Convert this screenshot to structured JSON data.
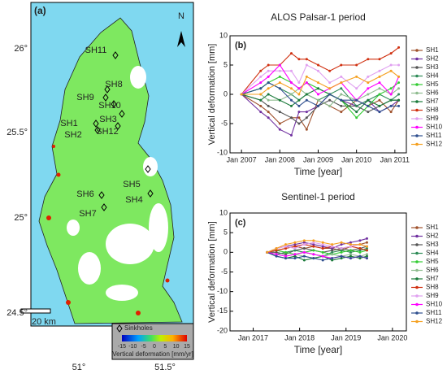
{
  "map": {
    "panel_label": "(a)",
    "north": "N",
    "scale_bar": "20 km",
    "legend_title": "Sinkholes",
    "colorbar_ticks": [
      -15,
      -10,
      -5,
      0,
      5,
      10,
      15
    ],
    "colorbar_label": "Vertical deformation [mm/yr]",
    "lat_labels": [
      "26°",
      "25.5°",
      "25°",
      "24.5°"
    ],
    "lon_labels": [
      "51°",
      "51.5°"
    ],
    "sinkholes": [
      "SH1",
      "SH2",
      "SH3",
      "SH4",
      "SH5",
      "SH6",
      "SH7",
      "SH8",
      "SH9",
      "SH10",
      "SH11",
      "SH12"
    ]
  },
  "chart_data": [
    {
      "type": "line",
      "title": "ALOS Palsar-1 period",
      "panel_label": "(b)",
      "x_label": "Time [year]",
      "y_label": "Vertical deformation [mm]",
      "x": [
        2007.0,
        2007.5,
        2007.7,
        2008.0,
        2008.3,
        2008.5,
        2008.7,
        2009.0,
        2009.3,
        2009.6,
        2010.0,
        2010.3,
        2010.6,
        2010.9,
        2011.1
      ],
      "xlim": [
        2006.7,
        2011.3
      ],
      "xticks": [
        {
          "value": 2007,
          "label": "Jan 2007"
        },
        {
          "value": 2008,
          "label": "Jan 2008"
        },
        {
          "value": 2009,
          "label": "Jan 2009"
        },
        {
          "value": 2010,
          "label": "Jan 2010"
        },
        {
          "value": 2011,
          "label": "Jan 2011"
        }
      ],
      "ylim": [
        -10,
        10
      ],
      "yticks": [
        -10,
        -5,
        0,
        5,
        10
      ],
      "grid": false,
      "legend": "right",
      "series": [
        {
          "name": "SH1",
          "color": "#a0522d",
          "values": [
            0,
            -2,
            -3,
            -5,
            -4,
            -4,
            -6,
            -1,
            -2,
            -3,
            -1,
            -2,
            -1,
            -3,
            -1
          ]
        },
        {
          "name": "SH2",
          "color": "#7030a0",
          "values": [
            0,
            -3,
            -4,
            -6,
            -7,
            -3,
            -3,
            -2,
            0,
            -1,
            -2,
            -1,
            -3,
            -2,
            -1
          ]
        },
        {
          "name": "SH3",
          "color": "#555555",
          "values": [
            0,
            -1,
            -2,
            -3,
            -4,
            -5,
            -4,
            -2,
            -1,
            -2,
            -2,
            -3,
            -2,
            -1,
            -1
          ]
        },
        {
          "name": "SH4",
          "color": "#2e8b57",
          "values": [
            0,
            1,
            2,
            1,
            0,
            -1,
            0,
            -1,
            0,
            1,
            -2,
            -1,
            0,
            -1,
            0
          ]
        },
        {
          "name": "SH5",
          "color": "#33cc33",
          "values": [
            0,
            1,
            2,
            3,
            2,
            1,
            2,
            1,
            0,
            -1,
            -4,
            -2,
            0,
            1,
            2
          ]
        },
        {
          "name": "SH6",
          "color": "#8fbc8f",
          "values": [
            0,
            0,
            -1,
            -1,
            0,
            1,
            0,
            -1,
            -2,
            0,
            -1,
            0,
            1,
            0,
            1
          ]
        },
        {
          "name": "SH7",
          "color": "#1a7a3a",
          "values": [
            0,
            -1,
            0,
            -1,
            -2,
            -1,
            0,
            1,
            0,
            -1,
            -3,
            -1,
            -2,
            -1,
            -1
          ]
        },
        {
          "name": "SH8",
          "color": "#d03010",
          "values": [
            0,
            4,
            5,
            5,
            7,
            6,
            6,
            5,
            4,
            5,
            5,
            6,
            6,
            7,
            8
          ]
        },
        {
          "name": "SH9",
          "color": "#e0a0f0",
          "values": [
            0,
            3,
            4,
            4,
            4,
            2,
            5,
            4,
            2,
            3,
            1,
            3,
            4,
            5,
            5
          ]
        },
        {
          "name": "SH10",
          "color": "#ff00ff",
          "values": [
            0,
            2,
            3,
            5,
            2,
            1,
            2,
            0,
            1,
            2,
            -1,
            1,
            2,
            0,
            3
          ]
        },
        {
          "name": "SH11",
          "color": "#2f4f8f",
          "values": [
            0,
            1,
            2,
            1,
            -1,
            -2,
            -1,
            -2,
            0,
            -1,
            -1,
            -2,
            -3,
            -2,
            -2
          ]
        },
        {
          "name": "SH12",
          "color": "#f5a020",
          "values": [
            0,
            0,
            1,
            2,
            1,
            0,
            3,
            2,
            1,
            2,
            3,
            2,
            3,
            4,
            3
          ]
        }
      ]
    },
    {
      "type": "line",
      "title": "Sentinel-1 period",
      "panel_label": "(c)",
      "x_label": "Time [year]",
      "y_label": "Vertical deformation [mm]",
      "x": [
        2017.3,
        2017.5,
        2017.7,
        2017.9,
        2018.1,
        2018.3,
        2018.5,
        2018.7,
        2018.9,
        2019.1,
        2019.3,
        2019.45
      ],
      "xlim": [
        2016.5,
        2020.3
      ],
      "xticks": [
        {
          "value": 2017,
          "label": "Jan 2017"
        },
        {
          "value": 2018,
          "label": "Jan 2018"
        },
        {
          "value": 2019,
          "label": "Jan 2019"
        },
        {
          "value": 2020,
          "label": "Jan 2020"
        }
      ],
      "ylim": [
        -20,
        10
      ],
      "yticks": [
        -20,
        -15,
        -10,
        -5,
        0,
        5,
        10
      ],
      "grid": false,
      "legend": "right",
      "series": [
        {
          "name": "SH1",
          "color": "#a0522d",
          "values": [
            0,
            0.5,
            1,
            1.5,
            1,
            1.5,
            1,
            1,
            0.5,
            1.5,
            2,
            2.5
          ]
        },
        {
          "name": "SH2",
          "color": "#7030a0",
          "values": [
            0,
            1,
            1.5,
            2,
            2.5,
            2,
            1.5,
            1,
            2,
            2.5,
            3,
            3.5
          ]
        },
        {
          "name": "SH3",
          "color": "#555555",
          "values": [
            0,
            0,
            -0.5,
            0.5,
            1,
            0.5,
            0,
            0.5,
            1,
            0.5,
            1,
            1.5
          ]
        },
        {
          "name": "SH4",
          "color": "#2e8b57",
          "values": [
            0,
            -0.5,
            0,
            0.5,
            0,
            -0.5,
            -1,
            0,
            0.5,
            0,
            0.5,
            1
          ]
        },
        {
          "name": "SH5",
          "color": "#33cc33",
          "values": [
            0,
            0.5,
            0,
            -0.5,
            0,
            0.5,
            0,
            -0.5,
            0,
            0.5,
            0,
            0.5
          ]
        },
        {
          "name": "SH6",
          "color": "#8fbc8f",
          "values": [
            0,
            -0.5,
            -1,
            -0.5,
            -1,
            -1.5,
            -1,
            -0.5,
            -1,
            -0.5,
            -1,
            -0.5
          ]
        },
        {
          "name": "SH7",
          "color": "#1a7a3a",
          "values": [
            0,
            -1,
            -1.5,
            -1,
            -2,
            -1.5,
            -1,
            -2,
            -1.5,
            -1,
            -1.5,
            -1
          ]
        },
        {
          "name": "SH8",
          "color": "#d03010",
          "values": [
            0,
            0.5,
            1,
            1.5,
            2,
            1.5,
            1,
            1.5,
            1,
            1.5,
            1,
            0.5
          ]
        },
        {
          "name": "SH9",
          "color": "#e0a0f0",
          "values": [
            0,
            1,
            1.5,
            1,
            2,
            2.5,
            2,
            1.5,
            1,
            1.5,
            2,
            1.5
          ]
        },
        {
          "name": "SH10",
          "color": "#ff00ff",
          "values": [
            0,
            -0.5,
            -1,
            -0.5,
            0,
            -0.5,
            -1,
            -1.5,
            -1,
            -1.5,
            -1,
            -1.5
          ]
        },
        {
          "name": "SH11",
          "color": "#2f4f8f",
          "values": [
            0,
            -1,
            -1.5,
            -1.5,
            -1,
            -1.5,
            -2,
            -1.5,
            -1,
            -1.5,
            -1,
            -1.5
          ]
        },
        {
          "name": "SH12",
          "color": "#f5a020",
          "values": [
            0,
            1,
            2,
            2.5,
            3,
            3,
            2.5,
            2,
            2.5,
            2,
            2,
            1.5
          ]
        }
      ]
    }
  ]
}
